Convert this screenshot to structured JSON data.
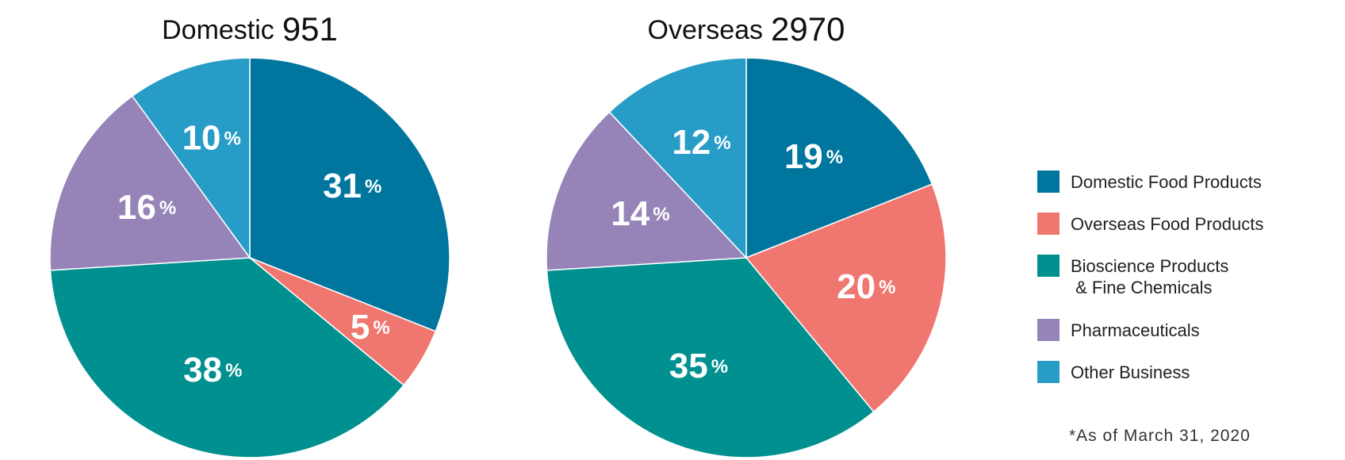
{
  "chart_data": [
    {
      "type": "pie",
      "title": "Domestic",
      "total": "951",
      "categories": [
        "Domestic Food Products",
        "Overseas Food Products",
        "Bioscience Products & Fine Chemicals",
        "Pharmaceuticals",
        "Other Business"
      ],
      "values": [
        31,
        5,
        38,
        16,
        10
      ],
      "unit": "%"
    },
    {
      "type": "pie",
      "title": "Overseas",
      "total": "2970",
      "categories": [
        "Domestic Food Products",
        "Overseas Food Products",
        "Bioscience Products & Fine Chemicals",
        "Pharmaceuticals",
        "Other Business"
      ],
      "values": [
        19,
        20,
        35,
        14,
        12
      ],
      "unit": "%"
    }
  ],
  "legend": {
    "placement": "right",
    "items": [
      {
        "lines": [
          "Domestic Food Products"
        ],
        "color": "#00769f"
      },
      {
        "lines": [
          "Overseas Food Products"
        ],
        "color": "#f07670"
      },
      {
        "lines": [
          "Bioscience Products",
          " & Fine Chemicals"
        ],
        "color": "#009090"
      },
      {
        "lines": [
          "Pharmaceuticals"
        ],
        "color": "#9684b8"
      },
      {
        "lines": [
          "Other Business"
        ],
        "color": "#279cc6"
      }
    ]
  },
  "footnote": "*As of March 31, 2020"
}
